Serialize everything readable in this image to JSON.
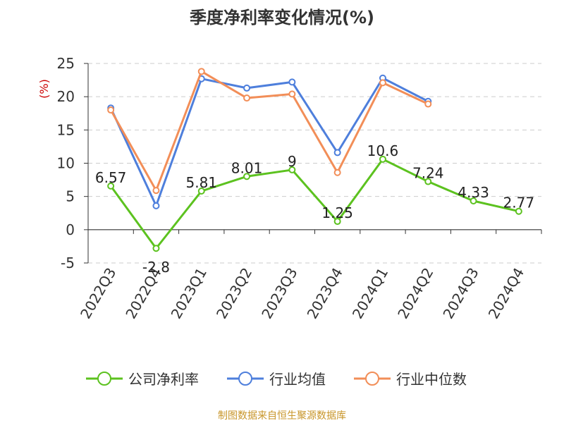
{
  "chart_data": {
    "type": "line",
    "title": "季度净利率变化情况(%)",
    "ylabel": "(%)",
    "ylim": [
      -5,
      25
    ],
    "yticks": [
      -5,
      0,
      5,
      10,
      15,
      20,
      25
    ],
    "grid": true,
    "legend_position": "bottom",
    "categories": [
      "2022Q3",
      "2022Q4",
      "2023Q1",
      "2023Q2",
      "2023Q3",
      "2023Q4",
      "2024Q1",
      "2024Q2",
      "2024Q3",
      "2024Q4"
    ],
    "series": [
      {
        "name": "公司净利率",
        "color": "#5cc21f",
        "values": [
          6.57,
          -2.8,
          5.81,
          8.01,
          9,
          1.25,
          10.6,
          7.24,
          4.33,
          2.77
        ],
        "labels": [
          "6.57",
          "-2.8",
          "5.81",
          "8.01",
          "9",
          "1.25",
          "10.6",
          "7.24",
          "4.33",
          "2.77"
        ]
      },
      {
        "name": "行业均值",
        "color": "#4e7fdc",
        "values": [
          18.3,
          3.6,
          22.7,
          21.3,
          22.2,
          11.6,
          22.8,
          19.3,
          null,
          null
        ]
      },
      {
        "name": "行业中位数",
        "color": "#f28e58",
        "values": [
          18.0,
          5.9,
          23.8,
          19.8,
          20.4,
          8.6,
          22.1,
          18.9,
          null,
          null
        ]
      }
    ]
  },
  "source_text": "制图数据来自恒生聚源数据库",
  "colors": {
    "axis": "#333333",
    "grid": "#cccccc",
    "unit_label": "#cc0000",
    "source_text": "#c8962a"
  }
}
